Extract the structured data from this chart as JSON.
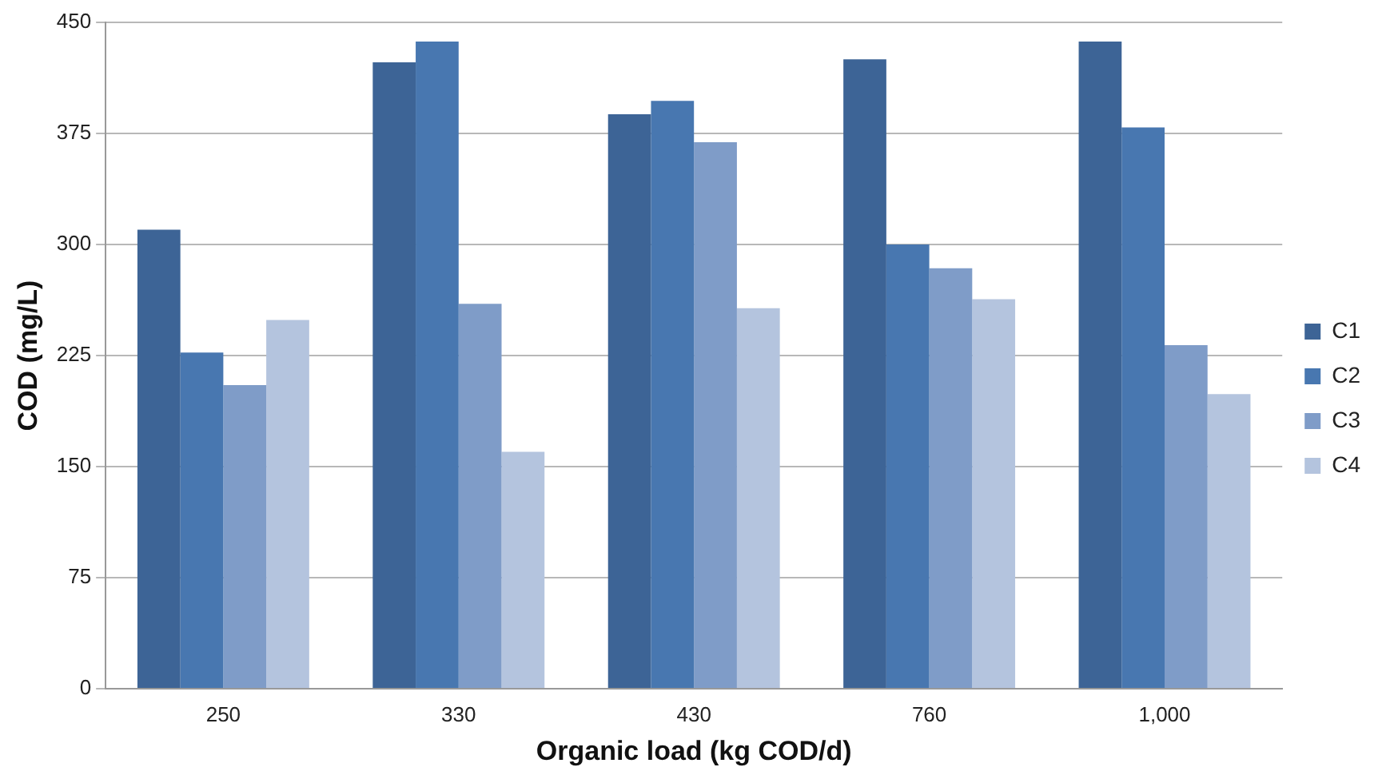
{
  "chart_data": {
    "type": "bar",
    "xlabel": "Organic load (kg COD/d)",
    "ylabel": "COD (mg/L)",
    "categories": [
      "250",
      "330",
      "430",
      "760",
      "1,000"
    ],
    "series": [
      {
        "name": "C1",
        "color": "#3d6496",
        "values": [
          310,
          423,
          388,
          425,
          437
        ]
      },
      {
        "name": "C2",
        "color": "#4877b0",
        "values": [
          227,
          437,
          397,
          300,
          379
        ]
      },
      {
        "name": "C3",
        "color": "#7f9cc8",
        "values": [
          205,
          260,
          369,
          284,
          232
        ]
      },
      {
        "name": "C4",
        "color": "#b4c4de",
        "values": [
          249,
          160,
          257,
          263,
          199
        ]
      }
    ],
    "ylim": [
      0,
      450
    ],
    "yticks": [
      0,
      75,
      150,
      225,
      300,
      375,
      450
    ],
    "grid": "y",
    "legend": "right"
  }
}
